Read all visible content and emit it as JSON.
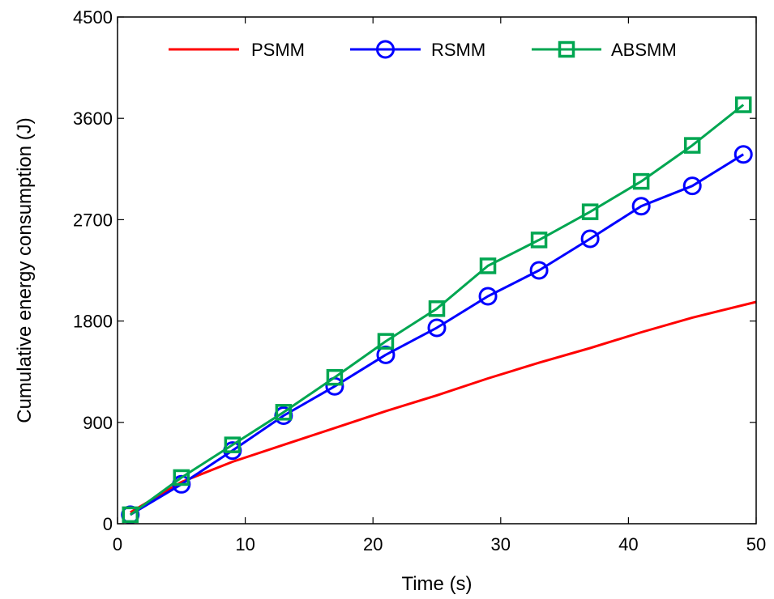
{
  "chart_data": {
    "type": "line",
    "xlabel": "Time (s)",
    "ylabel": "Cumulative energy consumption (J)",
    "xlim": [
      0,
      50
    ],
    "ylim": [
      0,
      4500
    ],
    "x_ticks": [
      0,
      10,
      20,
      30,
      40,
      50
    ],
    "y_ticks": [
      0,
      900,
      1800,
      2700,
      3600,
      4500
    ],
    "x_tick_labels": [
      "0",
      "10",
      "20",
      "30",
      "40",
      "50"
    ],
    "y_tick_labels": [
      "0",
      "900",
      "1800",
      "2700",
      "3600",
      "4500"
    ],
    "grid": false,
    "legend_position": "top",
    "series": [
      {
        "name": "PSMM",
        "color": "#ff0000",
        "marker": "none",
        "x": [
          1,
          5,
          9,
          13,
          17,
          21,
          25,
          29,
          33,
          37,
          41,
          45,
          50
        ],
        "y": [
          100,
          370,
          550,
          700,
          850,
          1000,
          1140,
          1290,
          1430,
          1560,
          1700,
          1830,
          1970
        ]
      },
      {
        "name": "RSMM",
        "color": "#0000ff",
        "marker": "circle",
        "x": [
          1,
          5,
          9,
          13,
          17,
          21,
          25,
          29,
          33,
          37,
          41,
          45,
          49
        ],
        "y": [
          80,
          350,
          650,
          960,
          1220,
          1500,
          1740,
          2020,
          2250,
          2530,
          2820,
          3000,
          3280
        ]
      },
      {
        "name": "ABSMM",
        "color": "#00a651",
        "marker": "square",
        "x": [
          1,
          5,
          9,
          13,
          17,
          21,
          25,
          29,
          33,
          37,
          41,
          45,
          49
        ],
        "y": [
          80,
          410,
          700,
          990,
          1300,
          1620,
          1910,
          2290,
          2520,
          2770,
          3040,
          3360,
          3720
        ]
      }
    ]
  }
}
